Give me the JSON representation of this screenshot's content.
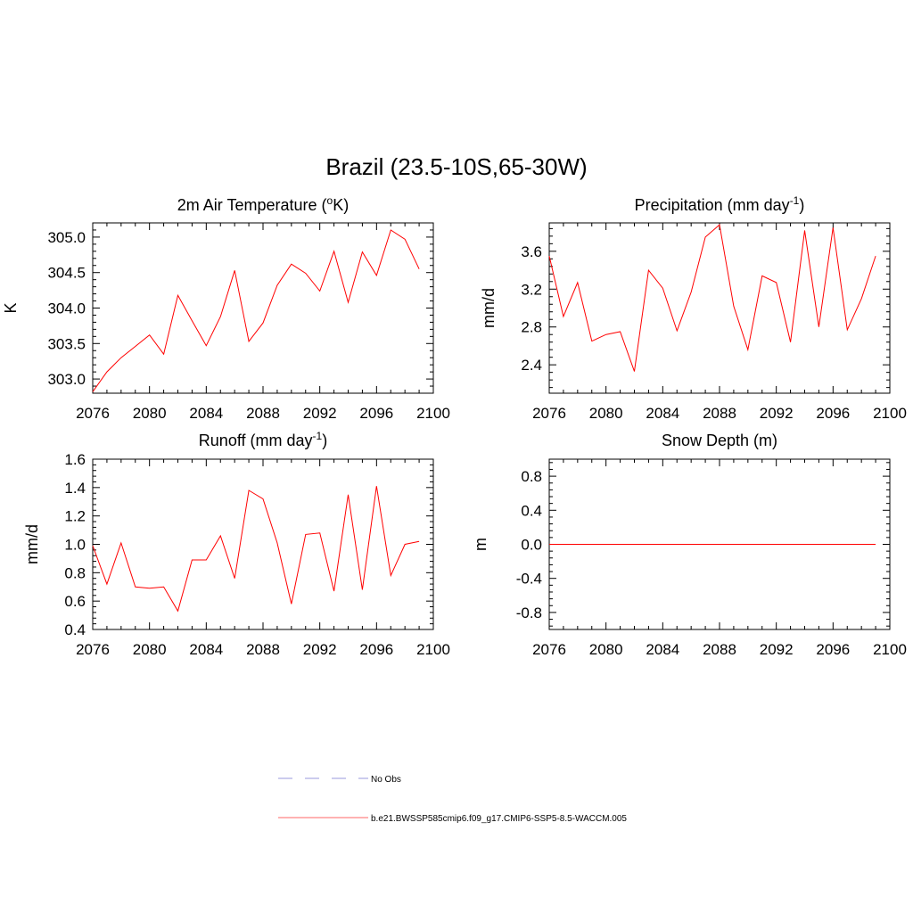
{
  "figure": {
    "title": "Brazil (23.5-10S,65-30W)"
  },
  "chart_data": [
    {
      "type": "line",
      "title_main": "2m Air Temperature (",
      "title_sup_pre": "o",
      "title_after_sup": "K)",
      "xlabel": "",
      "ylabel": "K",
      "xlim": [
        2076,
        2100
      ],
      "ylim": [
        302.8,
        305.2
      ],
      "xticks": [
        2076,
        2080,
        2084,
        2088,
        2092,
        2096,
        2100
      ],
      "yticks": [
        303.0,
        303.5,
        304.0,
        304.5,
        305.0
      ],
      "ytick_labels": [
        "303.0",
        "303.5",
        "304.0",
        "304.5",
        "305.0"
      ],
      "series": [
        {
          "color": "#ff0000",
          "x": [
            2076,
            2077,
            2078,
            2079,
            2080,
            2081,
            2082,
            2083,
            2084,
            2085,
            2086,
            2087,
            2088,
            2089,
            2090,
            2091,
            2092,
            2093,
            2094,
            2095,
            2096,
            2097,
            2098,
            2099
          ],
          "values": [
            302.82,
            303.1,
            303.3,
            303.46,
            303.62,
            303.35,
            304.18,
            303.82,
            303.47,
            303.88,
            304.53,
            303.53,
            303.79,
            304.32,
            304.62,
            304.49,
            304.24,
            304.8,
            304.08,
            304.79,
            304.46,
            305.1,
            304.97,
            304.55
          ]
        }
      ]
    },
    {
      "type": "line",
      "title_main": "Precipitation (mm day",
      "title_sup_post": "-1",
      "title_after_sup": ")",
      "xlabel": "",
      "ylabel": "mm/d",
      "xlim": [
        2076,
        2100
      ],
      "ylim": [
        2.1,
        3.9
      ],
      "xticks": [
        2076,
        2080,
        2084,
        2088,
        2092,
        2096,
        2100
      ],
      "yticks": [
        2.4,
        2.8,
        3.2,
        3.6
      ],
      "ytick_labels": [
        "2.4",
        "2.8",
        "3.2",
        "3.6"
      ],
      "series": [
        {
          "color": "#ff0000",
          "x": [
            2076,
            2077,
            2078,
            2079,
            2080,
            2081,
            2082,
            2083,
            2084,
            2085,
            2086,
            2087,
            2088,
            2089,
            2090,
            2091,
            2092,
            2093,
            2094,
            2095,
            2096,
            2097,
            2098,
            2099
          ],
          "values": [
            3.55,
            2.91,
            3.27,
            2.65,
            2.72,
            2.75,
            2.33,
            3.4,
            3.21,
            2.76,
            3.17,
            3.75,
            3.88,
            3.02,
            2.56,
            3.34,
            3.27,
            2.64,
            3.82,
            2.8,
            3.85,
            2.77,
            3.1,
            3.55
          ]
        }
      ]
    },
    {
      "type": "line",
      "title_main": "Runoff (mm day",
      "title_sup_post": "-1",
      "title_after_sup": ")",
      "xlabel": "",
      "ylabel": "mm/d",
      "xlim": [
        2076,
        2100
      ],
      "ylim": [
        0.4,
        1.6
      ],
      "xticks": [
        2076,
        2080,
        2084,
        2088,
        2092,
        2096,
        2100
      ],
      "yticks": [
        0.4,
        0.6,
        0.8,
        1.0,
        1.2,
        1.4,
        1.6
      ],
      "ytick_labels": [
        "0.4",
        "0.6",
        "0.8",
        "1.0",
        "1.2",
        "1.4",
        "1.6"
      ],
      "series": [
        {
          "color": "#ff0000",
          "x": [
            2076,
            2077,
            2078,
            2079,
            2080,
            2081,
            2082,
            2083,
            2084,
            2085,
            2086,
            2087,
            2088,
            2089,
            2090,
            2091,
            2092,
            2093,
            2094,
            2095,
            2096,
            2097,
            2098,
            2099
          ],
          "values": [
            0.99,
            0.72,
            1.01,
            0.7,
            0.69,
            0.7,
            0.53,
            0.89,
            0.89,
            1.06,
            0.76,
            1.38,
            1.32,
            1.01,
            0.58,
            1.07,
            1.08,
            0.67,
            1.35,
            0.68,
            1.41,
            0.78,
            1.0,
            1.02
          ]
        }
      ]
    },
    {
      "type": "line",
      "title_main": "Snow Depth (m)",
      "xlabel": "",
      "ylabel": "m",
      "xlim": [
        2076,
        2100
      ],
      "ylim": [
        -1.0,
        1.0
      ],
      "xticks": [
        2076,
        2080,
        2084,
        2088,
        2092,
        2096,
        2100
      ],
      "yticks": [
        -0.8,
        -0.4,
        0.0,
        0.4,
        0.8
      ],
      "ytick_labels": [
        "-0.8",
        "-0.4",
        "0.0",
        "0.4",
        "0.8"
      ],
      "series": [
        {
          "color": "#ff0000",
          "x": [
            2076,
            2077,
            2078,
            2079,
            2080,
            2081,
            2082,
            2083,
            2084,
            2085,
            2086,
            2087,
            2088,
            2089,
            2090,
            2091,
            2092,
            2093,
            2094,
            2095,
            2096,
            2097,
            2098,
            2099
          ],
          "values": [
            0,
            0,
            0,
            0,
            0,
            0,
            0,
            0,
            0,
            0,
            0,
            0,
            0,
            0,
            0,
            0,
            0,
            0,
            0,
            0,
            0,
            0,
            0,
            0
          ]
        }
      ]
    }
  ],
  "legend": {
    "entries": [
      {
        "label": "No Obs",
        "color": "#9999dd",
        "style": "dashed"
      },
      {
        "label": "b.e21.BWSSP585cmip6.f09_g17.CMIP6-SSP5-8.5-WACCM.005",
        "color": "#ff6666",
        "style": "solid"
      }
    ]
  }
}
